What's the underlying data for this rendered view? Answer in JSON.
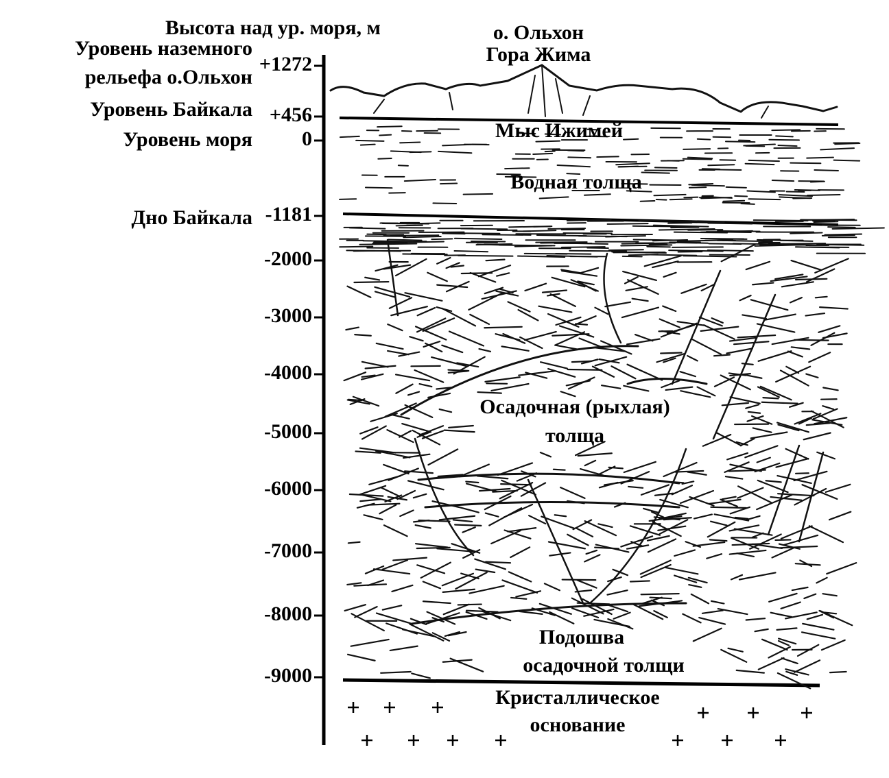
{
  "axis": {
    "title": "Высота над ур. моря, м",
    "ticks": [
      "+1272",
      "+456",
      "0",
      "-1181",
      "-2000",
      "-3000",
      "-4000",
      "-5000",
      "-6000",
      "-7000",
      "-8000",
      "-9000"
    ]
  },
  "levels": [
    [
      "Уровень наземного",
      "рельефа о.Ольхон"
    ],
    [
      "Уровень Байкала"
    ],
    [
      "Уровень моря"
    ],
    [
      "Дно Байкала"
    ]
  ],
  "regions": [
    "о. Ольхон",
    "Гора Жима",
    "Мыс Ижимей",
    "Водная толща",
    "Осадочная (рыхлая)",
    "толща",
    "Подошва",
    "осадочной толщи",
    "Кристаллическое",
    "основание"
  ]
}
